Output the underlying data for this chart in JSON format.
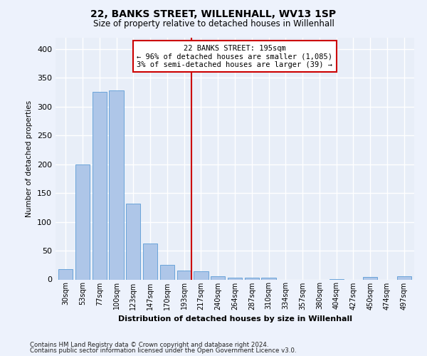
{
  "title": "22, BANKS STREET, WILLENHALL, WV13 1SP",
  "subtitle": "Size of property relative to detached houses in Willenhall",
  "xlabel": "Distribution of detached houses by size in Willenhall",
  "ylabel": "Number of detached properties",
  "bar_labels": [
    "30sqm",
    "53sqm",
    "77sqm",
    "100sqm",
    "123sqm",
    "147sqm",
    "170sqm",
    "193sqm",
    "217sqm",
    "240sqm",
    "264sqm",
    "287sqm",
    "310sqm",
    "334sqm",
    "357sqm",
    "380sqm",
    "404sqm",
    "427sqm",
    "450sqm",
    "474sqm",
    "497sqm"
  ],
  "bar_values": [
    18,
    200,
    325,
    328,
    132,
    62,
    25,
    15,
    14,
    6,
    3,
    3,
    3,
    0,
    0,
    0,
    1,
    0,
    4,
    0,
    5
  ],
  "bar_color": "#aec6e8",
  "bar_edge_color": "#5b9bd5",
  "background_color": "#e8eef8",
  "fig_background_color": "#edf2fc",
  "grid_color": "#ffffff",
  "marker_line_color": "#cc0000",
  "annotation_text": "22 BANKS STREET: 195sqm\n← 96% of detached houses are smaller (1,085)\n3% of semi-detached houses are larger (39) →",
  "annotation_box_color": "#cc0000",
  "ylim": [
    0,
    420
  ],
  "yticks": [
    0,
    50,
    100,
    150,
    200,
    250,
    300,
    350,
    400
  ],
  "footnote1": "Contains HM Land Registry data © Crown copyright and database right 2024.",
  "footnote2": "Contains public sector information licensed under the Open Government Licence v3.0."
}
